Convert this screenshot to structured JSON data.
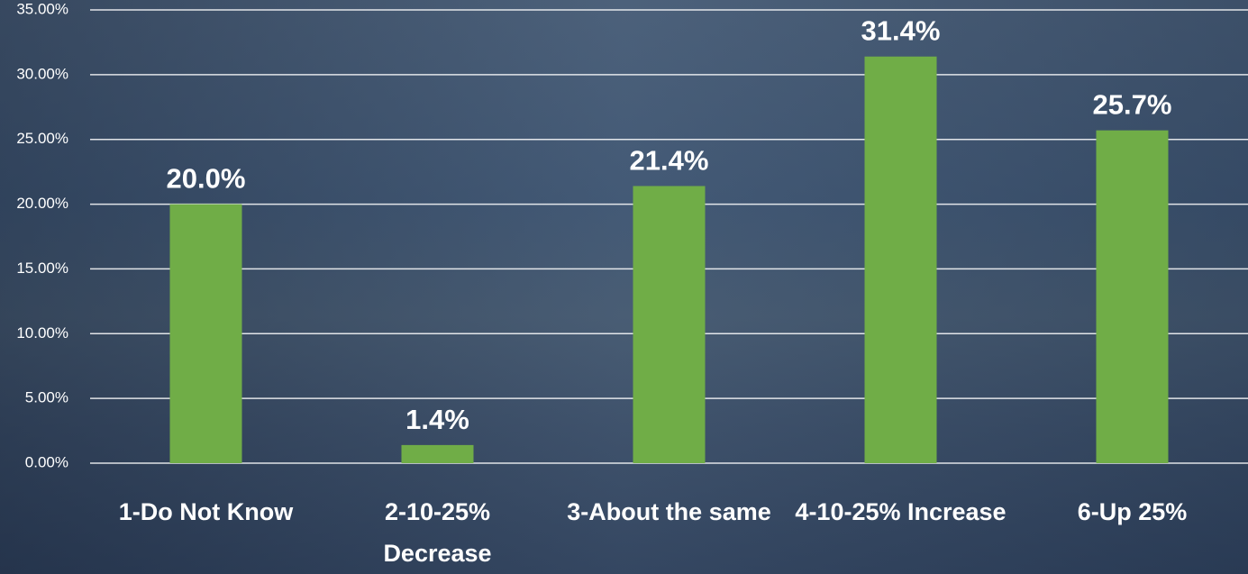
{
  "chart_data": {
    "type": "bar",
    "categories": [
      "1-Do Not Know",
      "2-10-25% Decrease",
      "3-About the same",
      "4-10-25% Increase",
      "6-Up 25%"
    ],
    "values": [
      20.0,
      1.4,
      21.4,
      31.4,
      25.7
    ],
    "value_labels": [
      "20.0%",
      "1.4%",
      "21.4%",
      "31.4%",
      "25.7%"
    ],
    "color": "#70ad47",
    "ylim": [
      0,
      35
    ],
    "yticks": [
      {
        "value": 0,
        "label": "0.00%"
      },
      {
        "value": 5,
        "label": "5.00%"
      },
      {
        "value": 10,
        "label": "10.00%"
      },
      {
        "value": 15,
        "label": "15.00%"
      },
      {
        "value": 20,
        "label": "20.00%"
      },
      {
        "value": 25,
        "label": "25.00%"
      },
      {
        "value": 30,
        "label": "30.00%"
      },
      {
        "value": 35,
        "label": "35.00%"
      }
    ],
    "grid": true
  }
}
